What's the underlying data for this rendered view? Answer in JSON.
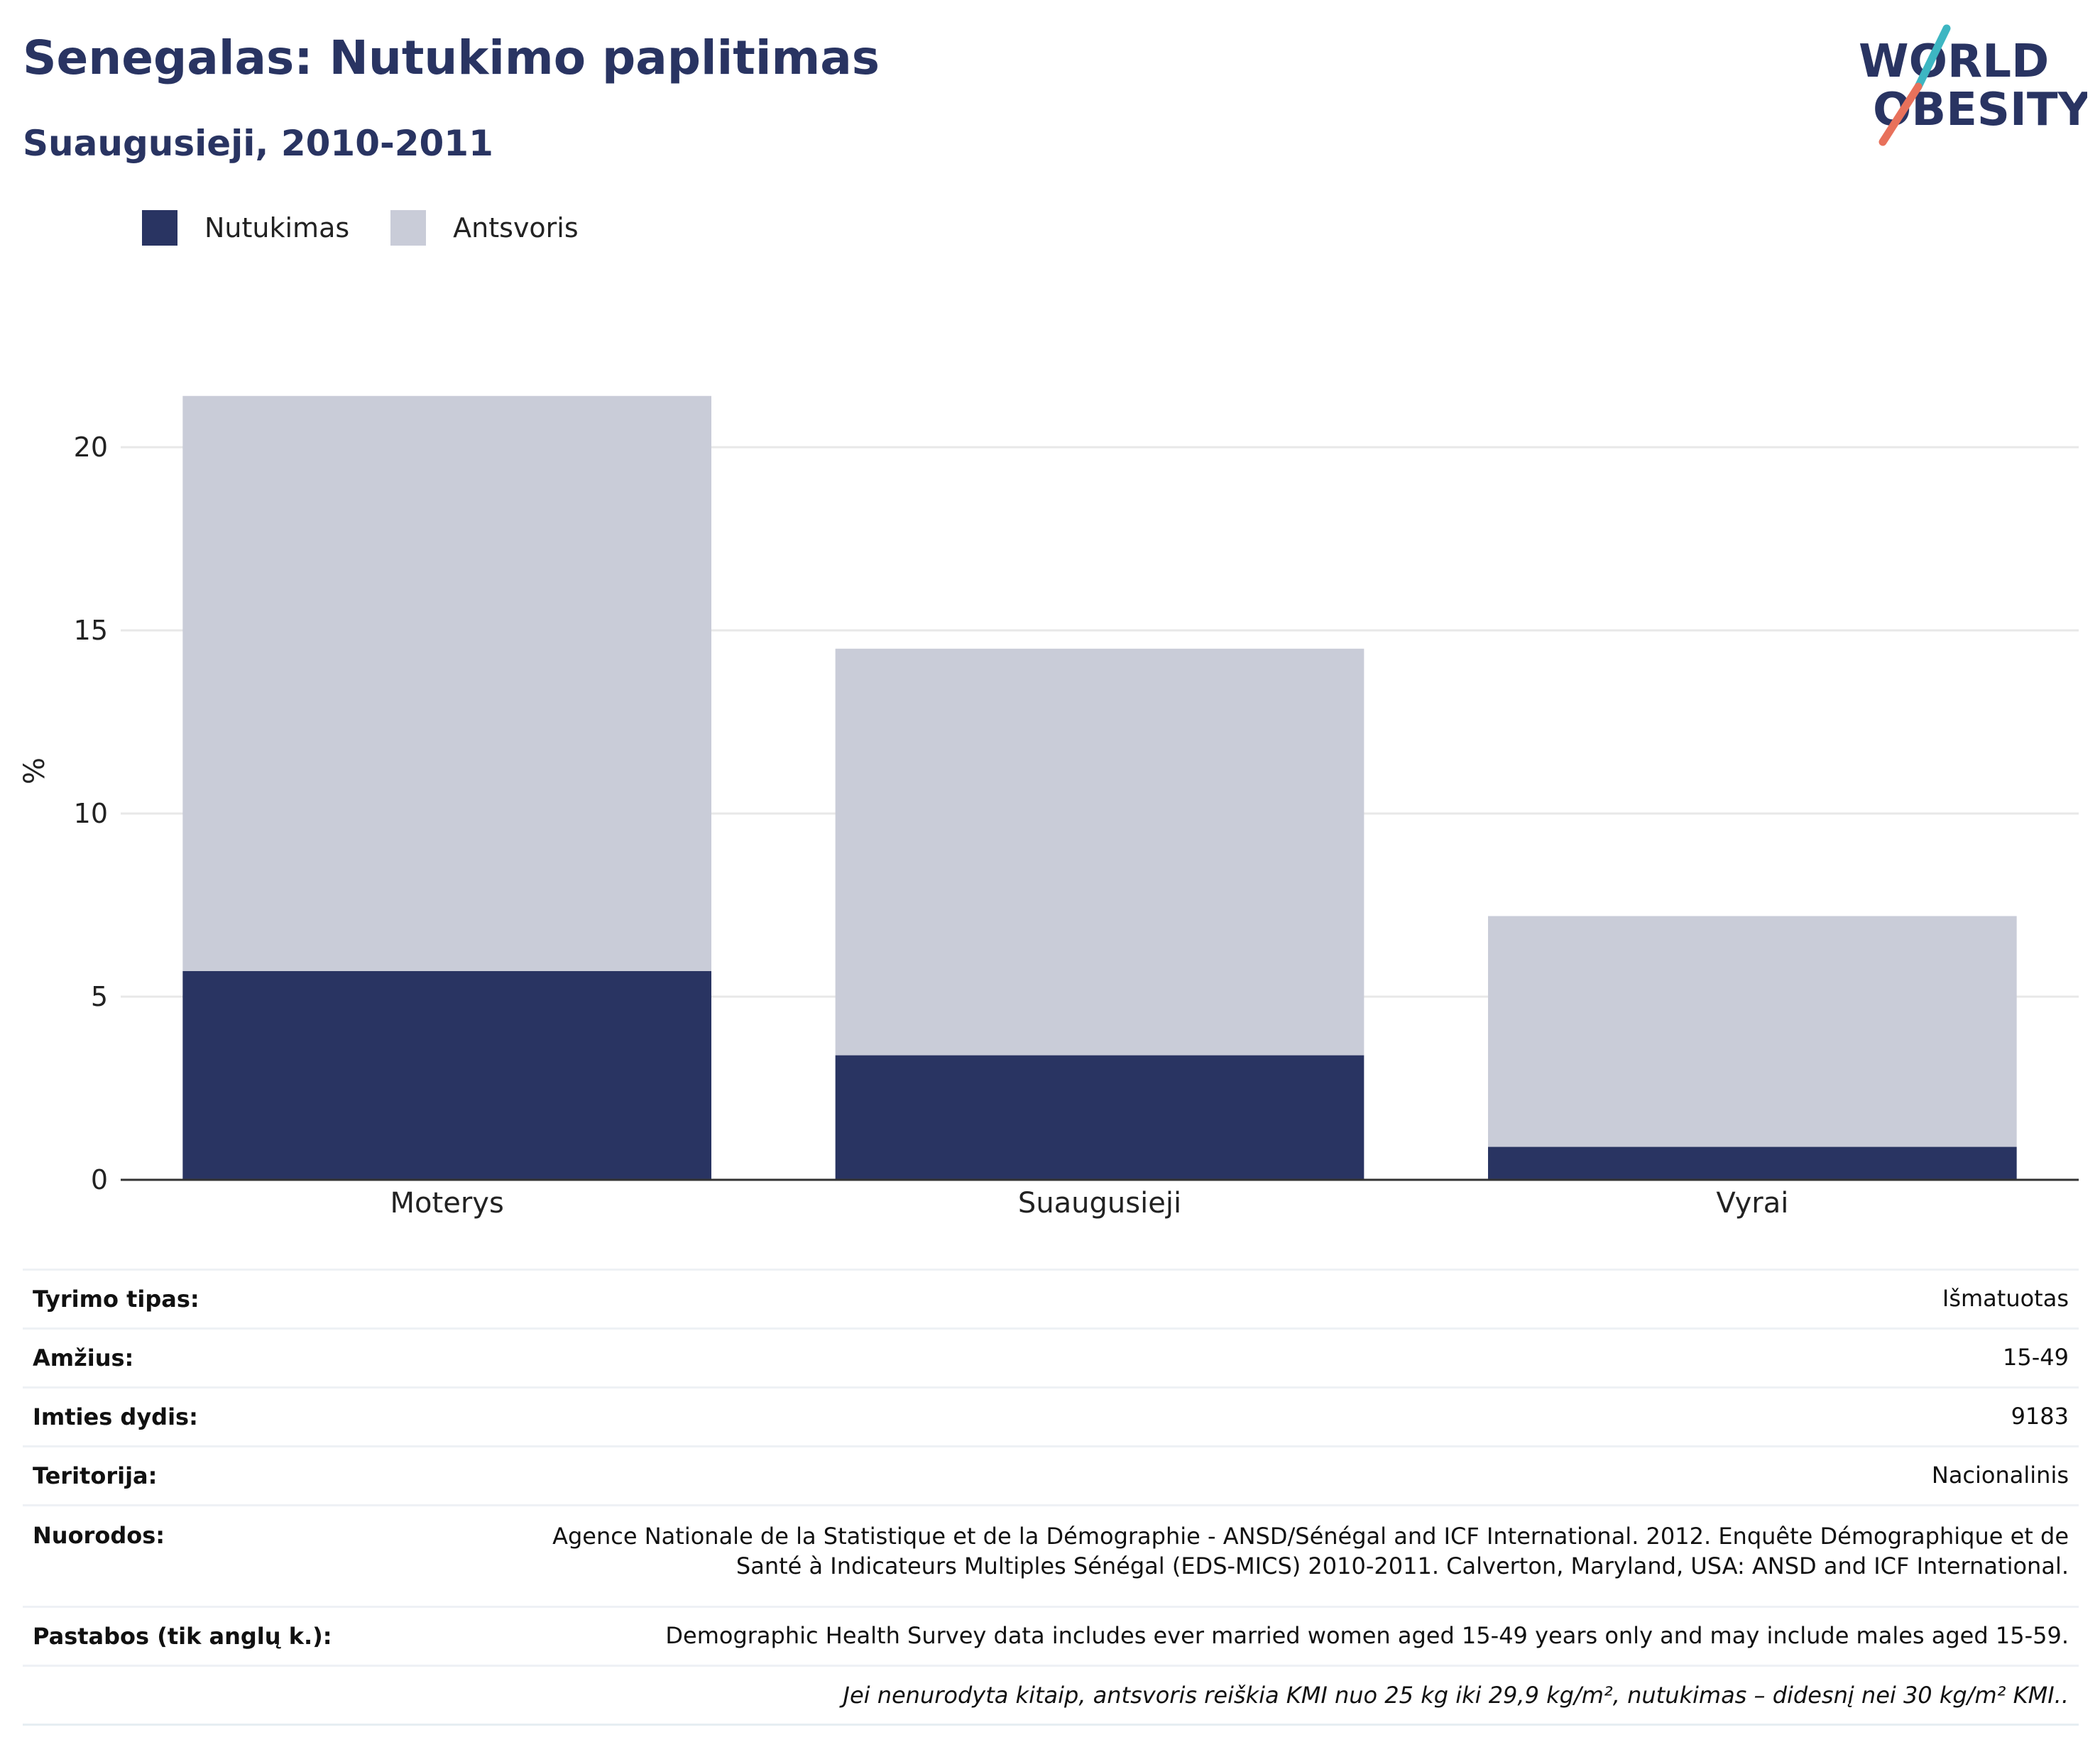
{
  "header": {
    "title": "Senegalas: Nutukimo paplitimas",
    "subtitle": "Suaugusieji, 2010-2011"
  },
  "logo": {
    "line1": "WORLD",
    "line2": "OBESITY"
  },
  "colors": {
    "obesity": "#293462",
    "overweight": "#c9ccd8",
    "title": "#293462",
    "grid": "#e8e8e8",
    "axis": "#333333"
  },
  "chart_data": {
    "type": "bar",
    "stacked": true,
    "categories": [
      "Moterys",
      "Suaugusieji",
      "Vyrai"
    ],
    "series": [
      {
        "name": "Nutukimas",
        "color": "#293462",
        "values": [
          5.7,
          3.4,
          0.9
        ]
      },
      {
        "name": "Antsvoris",
        "color": "#c9ccd8",
        "values": [
          15.7,
          11.1,
          6.3
        ]
      }
    ],
    "xlabel": "",
    "ylabel": "%",
    "ylim": [
      0,
      22
    ],
    "yticks": [
      0,
      5,
      10,
      15,
      20
    ],
    "grid": true,
    "legend": "top-left"
  },
  "meta": {
    "rows": [
      {
        "key": "Tyrimo tipas:",
        "value": "Išmatuotas"
      },
      {
        "key": "Amžius:",
        "value": "15-49"
      },
      {
        "key": "Imties dydis:",
        "value": "9183"
      },
      {
        "key": "Teritorija:",
        "value": "Nacionalinis"
      }
    ],
    "references_key": "Nuorodos:",
    "references_line1": "Agence Nationale de la Statistique et de la Démographie - ANSD/Sénégal and ICF International. 2012. Enquête Démographique et de",
    "references_line2": "Santé à Indicateurs Multiples Sénégal (EDS-MICS) 2010-2011. Calverton, Maryland, USA: ANSD and ICF International.",
    "notes_key": "Pastabos (tik anglų k.):",
    "notes_value": "Demographic Health Survey data includes ever married women aged 15-49 years only and may include males aged 15-59.",
    "footnote": "Jei nenurodyta kitaip, antsvoris reiškia KMI nuo 25 kg iki 29,9 kg/m², nutukimas – didesnį nei 30 kg/m² KMI.."
  }
}
